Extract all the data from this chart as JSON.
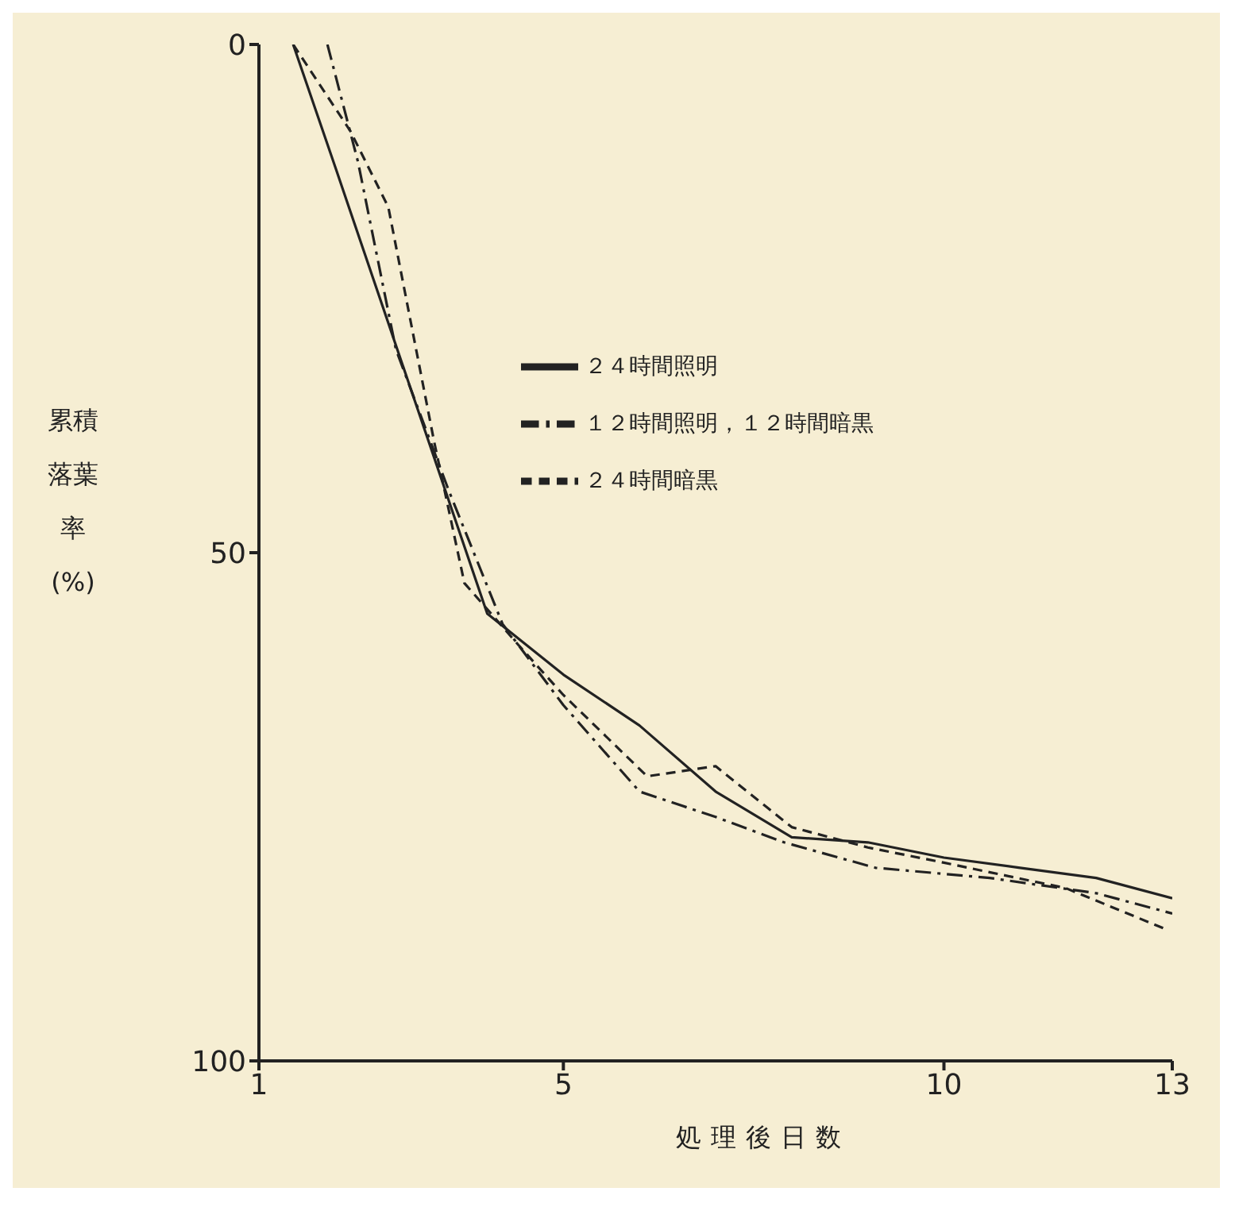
{
  "chart_data": {
    "type": "line",
    "xlabel": "処理後日数",
    "ylabel": "累積落葉率(%)",
    "xlim": [
      1,
      13
    ],
    "xticks": [
      1,
      5,
      10,
      13
    ],
    "ylim": [
      100,
      0
    ],
    "yticks": [
      0,
      50,
      100
    ],
    "grid": false,
    "legend": "top right",
    "marker": "none",
    "series": [
      {
        "name": "２４時間照明",
        "color": "#222222",
        "line_style": "solid",
        "x": [
          1.45,
          2,
          3,
          4,
          5,
          6,
          7,
          8,
          9,
          10,
          11,
          12,
          13
        ],
        "values": [
          0,
          12,
          34,
          56,
          62,
          67,
          73.5,
          78,
          78.5,
          80,
          81,
          82,
          84
        ]
      },
      {
        "name": "１２時間照明，１２時間暗黒",
        "color": "#222222",
        "line_style": "dashdot",
        "x": [
          1.9,
          2.3,
          2.8,
          3.5,
          4.2,
          5,
          6,
          7,
          7.9,
          9.1,
          10.6,
          12,
          13
        ],
        "values": [
          0,
          11.5,
          30,
          44,
          57,
          65,
          73.5,
          76,
          78.5,
          81,
          82,
          83.5,
          85.5
        ]
      },
      {
        "name": "２４時間暗黒",
        "color": "#222222",
        "line_style": "dashed",
        "x": [
          1.45,
          2.2,
          2.7,
          3.3,
          3.7,
          4.4,
          5,
          6.1,
          7,
          8,
          9,
          10,
          11.6,
          12.9
        ],
        "values": [
          0,
          8.5,
          16,
          39,
          53,
          59,
          64,
          72,
          71,
          77,
          79,
          80.5,
          83,
          87
        ]
      }
    ]
  }
}
